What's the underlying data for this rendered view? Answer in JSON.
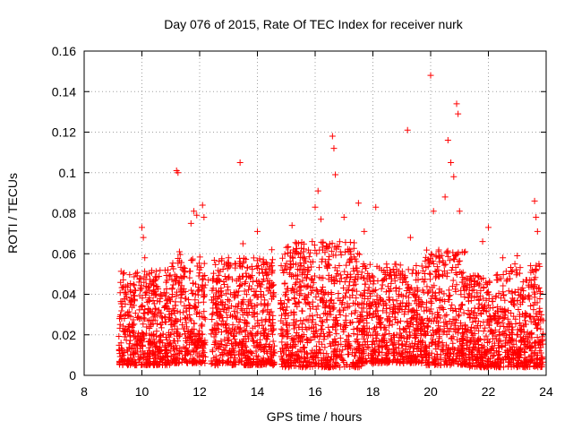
{
  "chart_data": {
    "type": "scatter",
    "title": "Day 076 of 2015, Rate Of TEC Index for receiver nurk",
    "xlabel": "GPS time / hours",
    "ylabel": "ROTI / TECUs",
    "xlim": [
      8,
      24
    ],
    "ylim": [
      0,
      0.16
    ],
    "xticks": [
      8,
      10,
      12,
      14,
      16,
      18,
      20,
      22,
      24
    ],
    "yticks": [
      0,
      0.02,
      0.04,
      0.06,
      0.08,
      0.1,
      0.12,
      0.14,
      0.16
    ],
    "xtick_labels": [
      "8",
      "10",
      "12",
      "14",
      "16",
      "18",
      "20",
      "22",
      "24"
    ],
    "ytick_labels": [
      "0",
      "0.02",
      "0.04",
      "0.06",
      "0.08",
      "0.1",
      "0.12",
      "0.14",
      "0.16"
    ],
    "grid": true,
    "marker": "plus",
    "color": "#ff0000",
    "series": [
      {
        "points": [
          [
            9.3,
            0.012
          ],
          [
            9.3,
            0.028
          ],
          [
            9.4,
            0.041
          ],
          [
            9.35,
            0.05
          ],
          [
            9.5,
            0.022
          ],
          [
            9.6,
            0.035
          ],
          [
            9.8,
            0.018
          ],
          [
            9.9,
            0.046
          ],
          [
            10.0,
            0.073
          ],
          [
            10.05,
            0.068
          ],
          [
            10.1,
            0.058
          ],
          [
            10.2,
            0.031
          ],
          [
            10.3,
            0.015
          ],
          [
            10.5,
            0.044
          ],
          [
            10.7,
            0.026
          ],
          [
            10.9,
            0.052
          ],
          [
            11.0,
            0.012
          ],
          [
            11.2,
            0.101
          ],
          [
            11.25,
            0.1
          ],
          [
            11.3,
            0.061
          ],
          [
            11.5,
            0.038
          ],
          [
            11.7,
            0.075
          ],
          [
            11.8,
            0.081
          ],
          [
            11.9,
            0.079
          ],
          [
            12.0,
            0.029
          ],
          [
            12.1,
            0.084
          ],
          [
            12.15,
            0.078
          ],
          [
            12.3,
            0.047
          ],
          [
            12.5,
            0.019
          ],
          [
            12.8,
            0.036
          ],
          [
            13.0,
            0.058
          ],
          [
            13.2,
            0.022
          ],
          [
            13.4,
            0.105
          ],
          [
            13.5,
            0.065
          ],
          [
            13.7,
            0.049
          ],
          [
            13.9,
            0.031
          ],
          [
            14.0,
            0.071
          ],
          [
            14.2,
            0.056
          ],
          [
            14.4,
            0.027
          ],
          [
            14.5,
            0.062
          ],
          [
            14.6,
            0.011
          ],
          [
            14.8,
            0.033
          ],
          [
            15.0,
            0.025
          ],
          [
            15.2,
            0.074
          ],
          [
            15.3,
            0.06
          ],
          [
            15.5,
            0.042
          ],
          [
            15.7,
            0.018
          ],
          [
            15.9,
            0.066
          ],
          [
            16.0,
            0.083
          ],
          [
            16.1,
            0.091
          ],
          [
            16.2,
            0.077
          ],
          [
            16.4,
            0.054
          ],
          [
            16.6,
            0.118
          ],
          [
            16.65,
            0.112
          ],
          [
            16.7,
            0.099
          ],
          [
            16.8,
            0.038
          ],
          [
            17.0,
            0.078
          ],
          [
            17.2,
            0.062
          ],
          [
            17.4,
            0.045
          ],
          [
            17.5,
            0.085
          ],
          [
            17.7,
            0.071
          ],
          [
            17.9,
            0.033
          ],
          [
            18.1,
            0.083
          ],
          [
            18.3,
            0.052
          ],
          [
            18.5,
            0.027
          ],
          [
            18.8,
            0.043
          ],
          [
            19.0,
            0.015
          ],
          [
            19.2,
            0.121
          ],
          [
            19.3,
            0.068
          ],
          [
            19.5,
            0.039
          ],
          [
            19.8,
            0.022
          ],
          [
            20.0,
            0.148
          ],
          [
            20.1,
            0.081
          ],
          [
            20.3,
            0.056
          ],
          [
            20.5,
            0.088
          ],
          [
            20.6,
            0.116
          ],
          [
            20.7,
            0.105
          ],
          [
            20.8,
            0.098
          ],
          [
            20.9,
            0.134
          ],
          [
            20.95,
            0.129
          ],
          [
            21.0,
            0.081
          ],
          [
            21.2,
            0.061
          ],
          [
            21.5,
            0.044
          ],
          [
            21.8,
            0.066
          ],
          [
            22.0,
            0.073
          ],
          [
            22.2,
            0.028
          ],
          [
            22.5,
            0.058
          ],
          [
            22.8,
            0.036
          ],
          [
            23.0,
            0.059
          ],
          [
            23.3,
            0.047
          ],
          [
            23.6,
            0.086
          ],
          [
            23.65,
            0.078
          ],
          [
            23.7,
            0.071
          ],
          [
            23.75,
            0.055
          ],
          [
            23.8,
            0.015
          ],
          [
            23.9,
            0.027
          ]
        ],
        "clusters": [
          {
            "x_start": 9.2,
            "x_end": 11.0,
            "y_min": 0.005,
            "y_max": 0.052
          },
          {
            "x_start": 11.0,
            "x_end": 12.2,
            "y_min": 0.006,
            "y_max": 0.06
          },
          {
            "x_start": 12.4,
            "x_end": 14.6,
            "y_min": 0.005,
            "y_max": 0.058
          },
          {
            "x_start": 14.8,
            "x_end": 17.6,
            "y_min": 0.004,
            "y_max": 0.066
          },
          {
            "x_start": 17.6,
            "x_end": 19.8,
            "y_min": 0.006,
            "y_max": 0.055
          },
          {
            "x_start": 19.8,
            "x_end": 21.2,
            "y_min": 0.005,
            "y_max": 0.062
          },
          {
            "x_start": 21.2,
            "x_end": 22.5,
            "y_min": 0.004,
            "y_max": 0.05
          },
          {
            "x_start": 22.5,
            "x_end": 23.9,
            "y_min": 0.004,
            "y_max": 0.055
          }
        ]
      }
    ]
  }
}
